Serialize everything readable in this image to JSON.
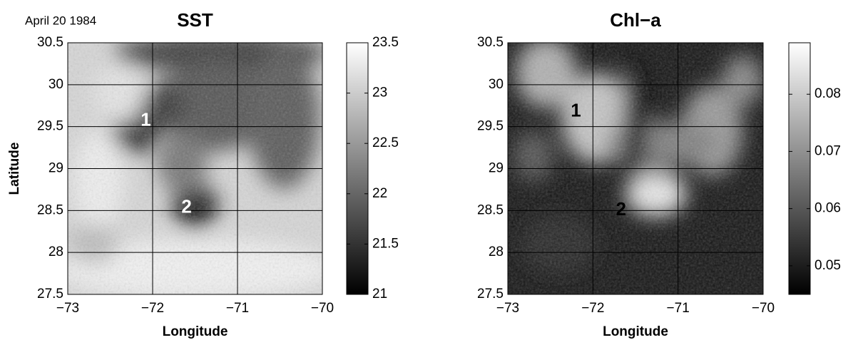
{
  "chart_data": [
    {
      "type": "heatmap",
      "title": "SST",
      "subtitle": "April 20 1984",
      "xlabel": "Longitude",
      "ylabel": "Latitude",
      "xlim": [
        -73,
        -70
      ],
      "xticks": [
        {
          "value": -73,
          "label": "−73"
        },
        {
          "value": -72,
          "label": "−72"
        },
        {
          "value": -71,
          "label": "−71"
        },
        {
          "value": -70,
          "label": "−70"
        }
      ],
      "ylim": [
        27.5,
        30.5
      ],
      "yticks": [
        27.5,
        28,
        28.5,
        29,
        29.5,
        30,
        30.5
      ],
      "grid": true,
      "colormap": "gray",
      "clim": [
        21,
        23.5
      ],
      "cticks": [
        21,
        21.5,
        22,
        22.5,
        23,
        23.5
      ],
      "annotations": [
        {
          "text": "1",
          "x": -72.08,
          "y": 29.57
        },
        {
          "text": "2",
          "x": -71.6,
          "y": 28.53
        }
      ]
    },
    {
      "type": "heatmap",
      "title": "Chl−a",
      "xlabel": "Longitude",
      "xlim": [
        -73,
        -70
      ],
      "xticks": [
        {
          "value": -73,
          "label": "−73"
        },
        {
          "value": -72,
          "label": "−72"
        },
        {
          "value": -71,
          "label": "−71"
        },
        {
          "value": -70,
          "label": "−70"
        }
      ],
      "ylim": [
        27.5,
        30.5
      ],
      "yticks": [
        27.5,
        28,
        28.5,
        29,
        29.5,
        30,
        30.5
      ],
      "grid": true,
      "colormap": "gray",
      "clim": [
        0.045,
        0.089
      ],
      "cticks": [
        0.05,
        0.06,
        0.07,
        0.08
      ],
      "annotations": [
        {
          "text": "1",
          "x": -72.2,
          "y": 29.68
        },
        {
          "text": "2",
          "x": -71.67,
          "y": 28.5
        }
      ]
    }
  ]
}
